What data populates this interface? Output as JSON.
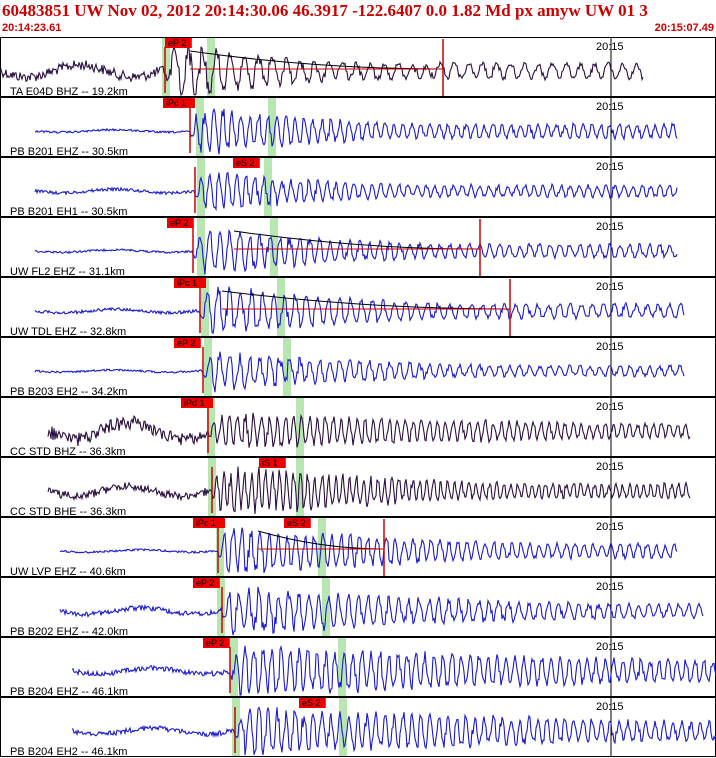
{
  "header": {
    "title": "60483851 UW Nov 02, 2012 20:14:30.06    46.3917 -122.6407  0.0 1.82 Md px amyw UW 01   3",
    "start_time": "20:14:23.61",
    "end_time": "20:15:07.49"
  },
  "colors": {
    "title": "#cc0000",
    "trace_blue": "#1a1acc",
    "trace_dark": "#2a1040",
    "pick_fill": "#ee0000",
    "pick_line": "#cc0000",
    "green_band": "#b8e6b0",
    "coda_line": "#000000",
    "border": "#000000"
  },
  "tick_label": "20:15",
  "panels": [
    {
      "label": "TA E04D BHZ -- 19.2km",
      "color": "trace_dark",
      "trace": {
        "start": 0,
        "end": 643,
        "onset": 165,
        "amp_pre": 10,
        "amp_post": 26,
        "period": 14,
        "decay": 0.006
      },
      "picks": [
        {
          "text": "eP 2",
          "x": 165
        }
      ],
      "green": [
        162,
        207
      ],
      "coda": [
        [
          190,
          443
        ]
      ],
      "duration_mark": 443
    },
    {
      "label": "PB B201 EHZ -- 30.5km",
      "color": "trace_blue",
      "trace": {
        "start": 35,
        "end": 677,
        "onset": 190,
        "amp_pre": 2,
        "amp_post": 24,
        "period": 9,
        "decay": 0.006
      },
      "picks": [
        {
          "text": "iPc 1",
          "x": 163
        }
      ],
      "green": [
        196,
        268
      ],
      "coda": [],
      "duration_mark": null
    },
    {
      "label": "PB B201 EH1 -- 30.5km",
      "color": "trace_blue",
      "trace": {
        "start": 35,
        "end": 677,
        "onset": 195,
        "amp_pre": 3,
        "amp_post": 20,
        "period": 9,
        "decay": 0.006
      },
      "picks": [
        {
          "text": "eS 2",
          "x": 233
        }
      ],
      "green": [
        197,
        264
      ],
      "coda": [],
      "duration_mark": null
    },
    {
      "label": "UW FL2 EHZ -- 31.1km",
      "color": "trace_blue",
      "trace": {
        "start": 35,
        "end": 677,
        "onset": 193,
        "amp_pre": 2,
        "amp_post": 22,
        "period": 10,
        "decay": 0.005
      },
      "picks": [
        {
          "text": "eP 2",
          "x": 167
        }
      ],
      "green": [
        197,
        270
      ],
      "coda": [
        [
          234,
          480
        ]
      ],
      "duration_mark": 480
    },
    {
      "label": "UW TDL EHZ -- 32.8km",
      "color": "trace_blue",
      "trace": {
        "start": 35,
        "end": 684,
        "onset": 200,
        "amp_pre": 3,
        "amp_post": 24,
        "period": 11,
        "decay": 0.005
      },
      "picks": [
        {
          "text": "iPc 1",
          "x": 174
        }
      ],
      "green": [
        201,
        277
      ],
      "coda": [
        [
          222,
          510
        ]
      ],
      "duration_mark": 510
    },
    {
      "label": "PB B203 EH2 -- 34.2km",
      "color": "trace_blue",
      "trace": {
        "start": 35,
        "end": 684,
        "onset": 203,
        "amp_pre": 2,
        "amp_post": 18,
        "period": 10,
        "decay": 0.004
      },
      "picks": [
        {
          "text": "eP 2",
          "x": 174
        }
      ],
      "green": [
        204,
        283
      ],
      "coda": [],
      "duration_mark": null
    },
    {
      "label": "CC STD BHZ -- 36.3km",
      "color": "trace_dark",
      "trace": {
        "start": 48,
        "end": 690,
        "onset": 208,
        "amp_pre": 14,
        "amp_post": 16,
        "period": 8,
        "decay": 0.002
      },
      "picks": [
        {
          "text": "iPd 1",
          "x": 181
        }
      ],
      "green": [
        207,
        296
      ],
      "coda": [],
      "duration_mark": null
    },
    {
      "label": "CC STD BHE -- 36.3km",
      "color": "trace_dark",
      "trace": {
        "start": 48,
        "end": 690,
        "onset": 212,
        "amp_pre": 8,
        "amp_post": 24,
        "period": 7,
        "decay": 0.004
      },
      "picks": [
        {
          "text": "iS 1",
          "x": 259
        }
      ],
      "green": [
        208,
        296
      ],
      "coda": [],
      "duration_mark": null
    },
    {
      "label": "UW LVP EHZ -- 40.6km",
      "color": "trace_blue",
      "trace": {
        "start": 60,
        "end": 677,
        "onset": 218,
        "amp_pre": 2,
        "amp_post": 24,
        "period": 9,
        "decay": 0.004
      },
      "picks": [
        {
          "text": "iPc 1",
          "x": 193
        },
        {
          "text": "eS 2",
          "x": 284
        }
      ],
      "green": [
        216,
        318
      ],
      "coda": [
        [
          258,
          384
        ]
      ],
      "duration_mark": 384
    },
    {
      "label": "PB B202 EHZ -- 42.0km",
      "color": "trace_blue",
      "trace": {
        "start": 60,
        "end": 703,
        "onset": 222,
        "amp_pre": 5,
        "amp_post": 22,
        "period": 10,
        "decay": 0.003
      },
      "picks": [
        {
          "text": "eP 2",
          "x": 193
        }
      ],
      "green": [
        217,
        322
      ],
      "coda": [],
      "duration_mark": null
    },
    {
      "label": "PB B204 EHZ -- 46.1km",
      "color": "trace_blue",
      "trace": {
        "start": 72,
        "end": 716,
        "onset": 230,
        "amp_pre": 5,
        "amp_post": 24,
        "period": 9,
        "decay": 0.002
      },
      "picks": [
        {
          "text": "eP 2",
          "x": 203
        }
      ],
      "green": [
        230,
        338
      ],
      "coda": [],
      "duration_mark": null
    },
    {
      "label": "PB B204 EH2 -- 46.1km",
      "color": "trace_blue",
      "trace": {
        "start": 72,
        "end": 716,
        "onset": 235,
        "amp_pre": 5,
        "amp_post": 22,
        "period": 9,
        "decay": 0.002
      },
      "picks": [
        {
          "text": "eS 2",
          "x": 299
        }
      ],
      "green": [
        232,
        339
      ],
      "coda": [],
      "duration_mark": null
    }
  ]
}
